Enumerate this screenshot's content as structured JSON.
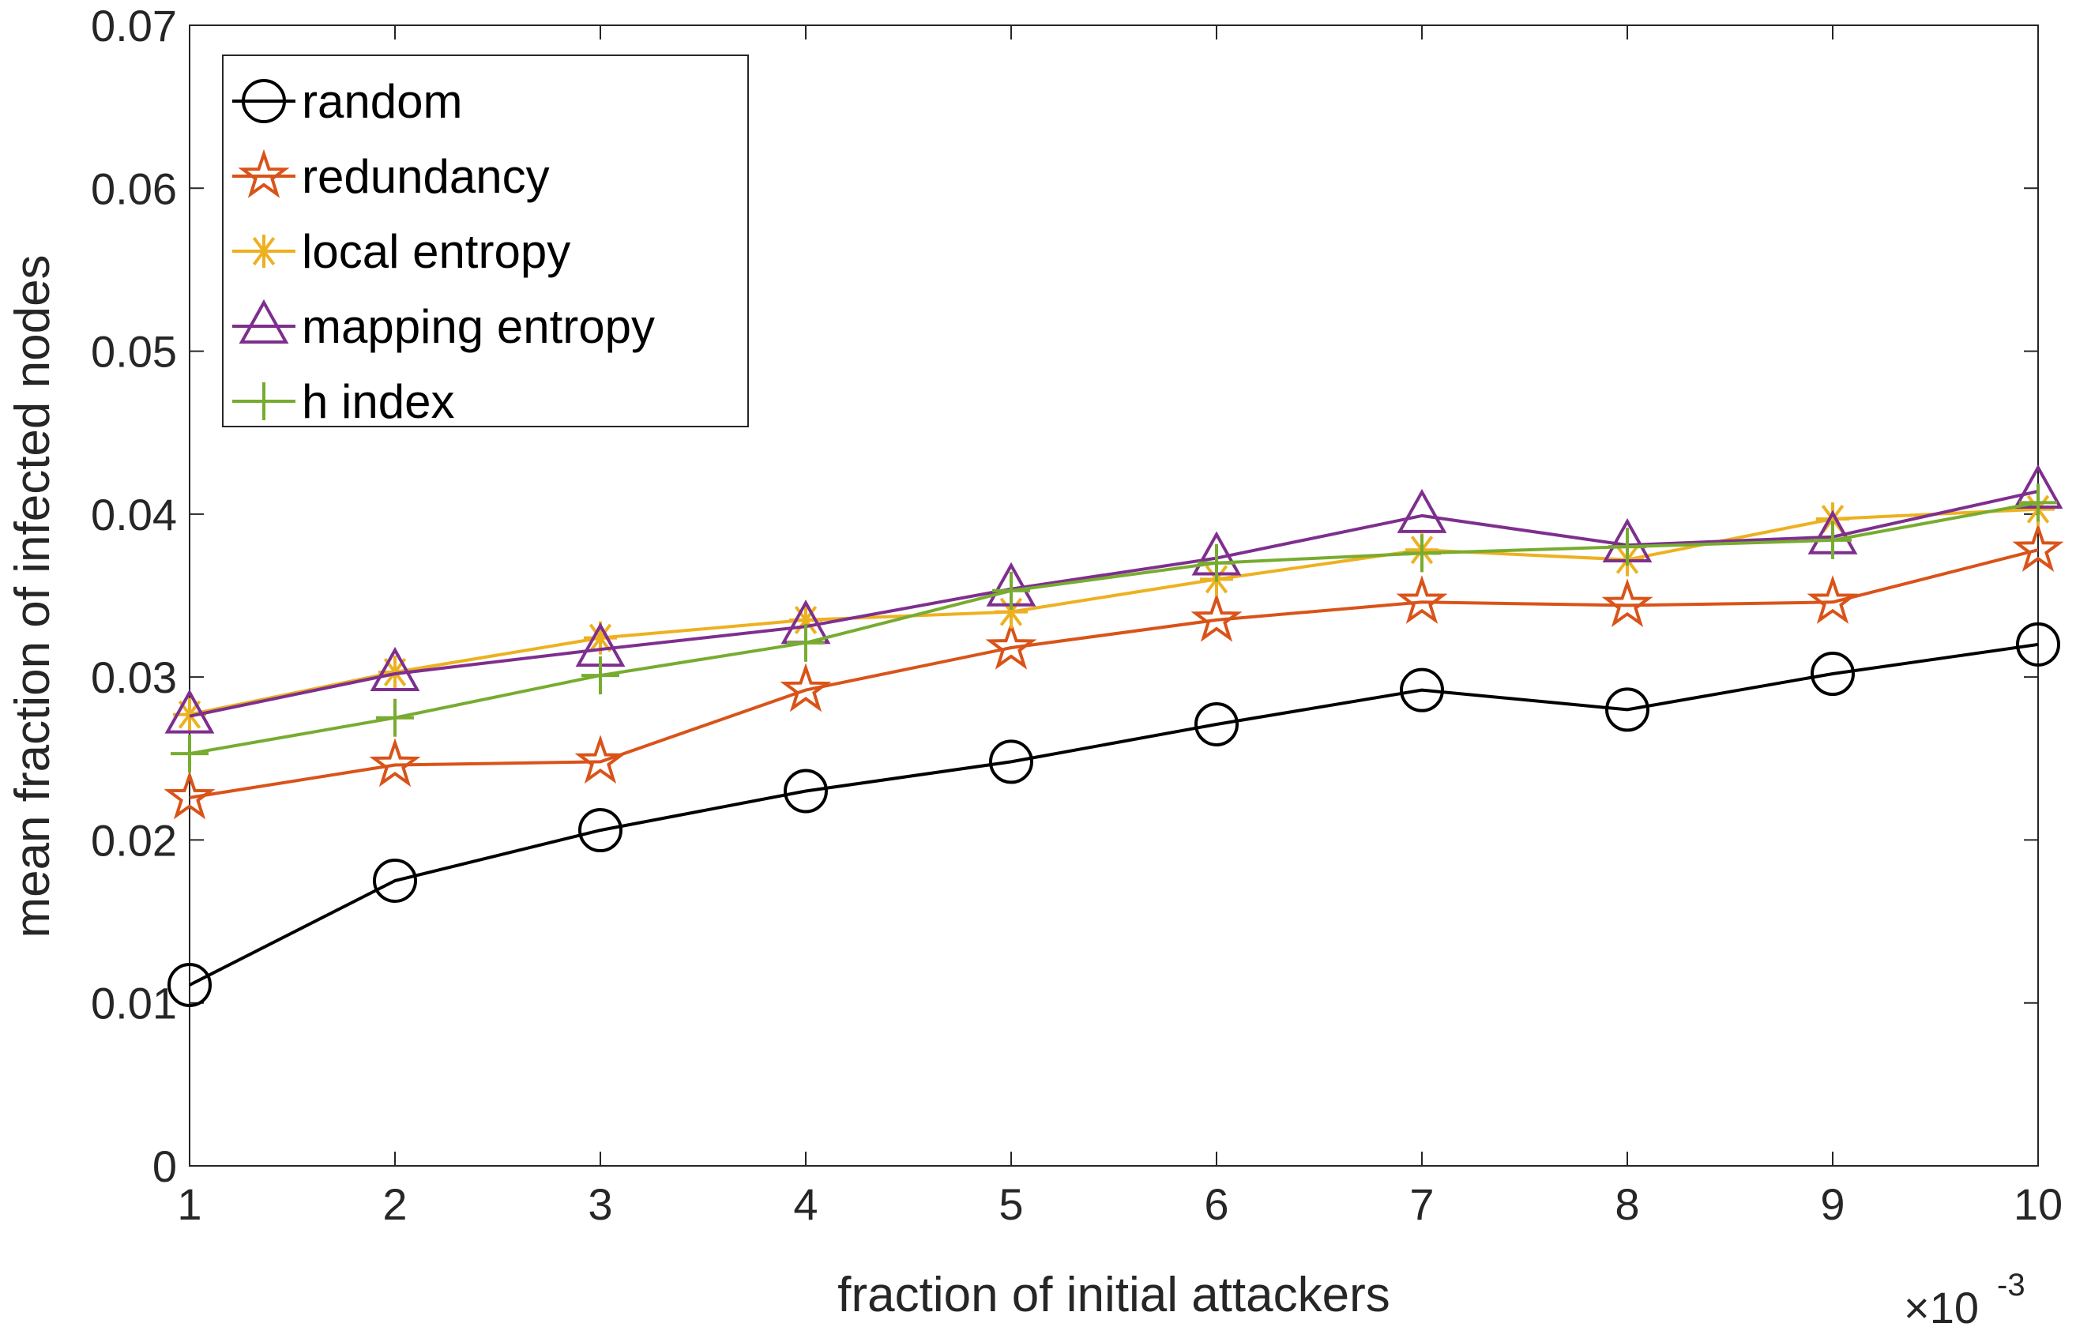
{
  "chart_data": {
    "type": "line",
    "xlabel": "fraction of initial attackers",
    "ylabel": "mean fraction of infected nodes",
    "x_exponent_label": "×10",
    "x_exponent_power": "-3",
    "xlim": [
      1,
      10
    ],
    "ylim": [
      0,
      0.07
    ],
    "xticks": [
      1,
      2,
      3,
      4,
      5,
      6,
      7,
      8,
      9,
      10
    ],
    "xtick_labels": [
      "1",
      "2",
      "3",
      "4",
      "5",
      "6",
      "7",
      "8",
      "9",
      "10"
    ],
    "yticks": [
      0,
      0.01,
      0.02,
      0.03,
      0.04,
      0.05,
      0.06,
      0.07
    ],
    "ytick_labels": [
      "0",
      "0.01",
      "0.02",
      "0.03",
      "0.04",
      "0.05",
      "0.06",
      "0.07"
    ],
    "grid": false,
    "legend_position": "top-left",
    "x": [
      1,
      2,
      3,
      4,
      5,
      6,
      7,
      8,
      9,
      10
    ],
    "series": [
      {
        "name": "random",
        "color": "#000000",
        "marker": "circle",
        "values": [
          0.0111,
          0.0175,
          0.0206,
          0.023,
          0.0248,
          0.0271,
          0.0292,
          0.028,
          0.0302,
          0.032
        ]
      },
      {
        "name": "redundancy",
        "color": "#D95319",
        "marker": "pentagram",
        "values": [
          0.0226,
          0.0246,
          0.0248,
          0.0292,
          0.0318,
          0.0335,
          0.0346,
          0.0344,
          0.0346,
          0.0378
        ]
      },
      {
        "name": "local entropy",
        "color": "#EDB120",
        "marker": "asterisk",
        "values": [
          0.0277,
          0.0303,
          0.0324,
          0.0335,
          0.034,
          0.036,
          0.0378,
          0.0372,
          0.0397,
          0.0403
        ]
      },
      {
        "name": "mapping entropy",
        "color": "#7E2F8E",
        "marker": "triangle",
        "values": [
          0.0276,
          0.0302,
          0.0317,
          0.0331,
          0.0354,
          0.0373,
          0.0399,
          0.0381,
          0.0386,
          0.0414
        ]
      },
      {
        "name": "h index",
        "color": "#77AC30",
        "marker": "plus",
        "values": [
          0.0253,
          0.0275,
          0.0301,
          0.0321,
          0.0353,
          0.037,
          0.0376,
          0.038,
          0.0384,
          0.0407
        ]
      }
    ]
  }
}
